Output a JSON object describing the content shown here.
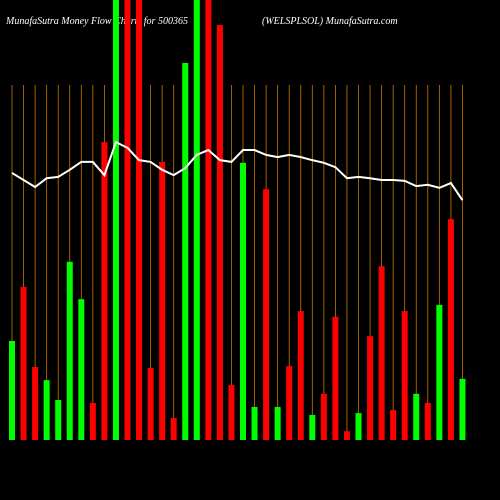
{
  "chart_data": {
    "type": "bar",
    "title": "MunafaSutra  Money Flow  Charts for 500365",
    "subtitle": "(WELSPLSOL) MunafaSutra.com",
    "categories": [
      null,
      null,
      null,
      null,
      null,
      null,
      null,
      null,
      null,
      null,
      null,
      null,
      null,
      null,
      null,
      null,
      null,
      null,
      null,
      null,
      null,
      null,
      null,
      null,
      null,
      null,
      null,
      null,
      null,
      null,
      null,
      null,
      null,
      null,
      null,
      null,
      null,
      null,
      null,
      null
    ],
    "ylim": [
      0,
      100
    ],
    "grid_color": "#cc7a00",
    "series": [
      {
        "type": "bar",
        "values": [
          22.5,
          34.8,
          16.6,
          13.6,
          9.1,
          40.5,
          32,
          8.4,
          67.7,
          100,
          100,
          100,
          16.4,
          63.2,
          5,
          85.7,
          100,
          100,
          94.3,
          12.5,
          63,
          7.5,
          57,
          7.5,
          16.8,
          29.3,
          5.7,
          10.5,
          28,
          2,
          6.1,
          23.6,
          39.5,
          6.8,
          29.3,
          10.5,
          8.4,
          30.7,
          50.2,
          13.9
        ],
        "colors": [
          "#00ff00",
          "#ff0000",
          "#ff0000",
          "#00ff00",
          "#00ff00",
          "#00ff00",
          "#00ff00",
          "#ff0000",
          "#ff0000",
          "#00ff00",
          "#ff0000",
          "#ff0000",
          "#ff0000",
          "#ff0000",
          "#ff0000",
          "#00ff00",
          "#00ff00",
          "#ff0000",
          "#ff0000",
          "#ff0000",
          "#00ff00",
          "#00ff00",
          "#ff0000",
          "#00ff00",
          "#ff0000",
          "#ff0000",
          "#00ff00",
          "#ff0000",
          "#ff0000",
          "#ff0000",
          "#00ff00",
          "#ff0000",
          "#ff0000",
          "#ff0000",
          "#ff0000",
          "#00ff00",
          "#ff0000",
          "#00ff00",
          "#ff0000",
          "#00ff00"
        ]
      },
      {
        "type": "line",
        "color": "#ffffff",
        "values": [
          60.7,
          59.1,
          57.5,
          59.5,
          59.8,
          61.4,
          63.2,
          63.2,
          60.2,
          67.7,
          66.4,
          63.6,
          63.2,
          61.4,
          60.2,
          61.8,
          64.8,
          65.9,
          63.6,
          63.2,
          65.9,
          65.9,
          64.8,
          64.3,
          64.8,
          64.3,
          63.6,
          63,
          62,
          59.5,
          59.8,
          59.5,
          59.1,
          59.1,
          58.9,
          57.7,
          58,
          57.3,
          58.4,
          54.5
        ]
      }
    ]
  }
}
